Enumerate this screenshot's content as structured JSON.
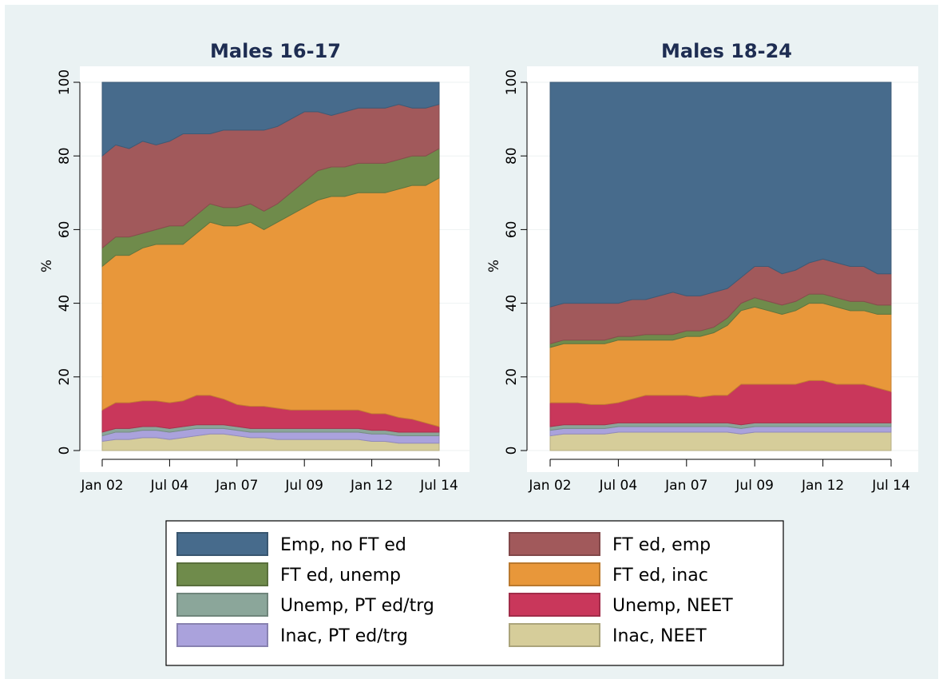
{
  "chart_data": [
    {
      "type": "area",
      "title": "Males 16-17",
      "y_label": "%",
      "x": [
        "Jan 02",
        null,
        null,
        null,
        null,
        "Jul 04",
        null,
        null,
        null,
        null,
        "Jan 07",
        null,
        null,
        null,
        null,
        "Jul 09",
        null,
        null,
        null,
        null,
        "Jan 12",
        null,
        null,
        null,
        null,
        "Jul 14"
      ],
      "ylim": [
        0,
        100
      ],
      "yticks": [
        0,
        20,
        40,
        60,
        80,
        100
      ],
      "grid": true,
      "stacked": true,
      "series": [
        {
          "name": "Inac, NEET",
          "color": "#d6cd9a",
          "values": [
            2.5,
            3,
            3,
            3.5,
            3.5,
            3,
            3.5,
            4,
            4.5,
            4.5,
            4,
            3.5,
            3.5,
            3,
            3,
            3,
            3,
            3,
            3,
            3,
            2.5,
            2.5,
            2,
            2,
            2,
            2
          ]
        },
        {
          "name": "Inac, PT ed/trg",
          "color": "#aaa2dc",
          "values": [
            1.5,
            2,
            2,
            2,
            2,
            2,
            2,
            2,
            1.5,
            1.5,
            1.5,
            1.5,
            1.5,
            2,
            2,
            2,
            2,
            2,
            2,
            2,
            2,
            2,
            2,
            2,
            2,
            2
          ]
        },
        {
          "name": "Unemp, PT ed/trg",
          "color": "#8ba69a",
          "values": [
            1,
            1,
            1,
            1,
            1,
            1,
            1,
            1,
            1,
            1,
            1,
            1,
            1,
            1,
            1,
            1,
            1,
            1,
            1,
            1,
            1,
            1,
            1,
            1,
            1,
            1
          ]
        },
        {
          "name": "Unemp, NEET",
          "color": "#c9375b",
          "values": [
            6,
            7,
            7,
            7,
            7,
            7,
            7,
            8,
            8,
            7,
            6,
            6,
            6,
            5.5,
            5,
            5,
            5,
            5,
            5,
            5,
            4.5,
            4.5,
            4,
            3.5,
            2.5,
            1.5
          ]
        },
        {
          "name": "FT ed, inac",
          "color": "#e8973a",
          "values": [
            39,
            40,
            40,
            41.5,
            42.5,
            43,
            42.5,
            44,
            47,
            47,
            48.5,
            50,
            48,
            50.5,
            53,
            55,
            57,
            58,
            58,
            59,
            60,
            60,
            62,
            63.5,
            64.5,
            67.5
          ]
        },
        {
          "name": "FT ed, unemp",
          "color": "#6f8b4b",
          "values": [
            5,
            5,
            5,
            4,
            4,
            5,
            5,
            5,
            5,
            5,
            5,
            5,
            5,
            5,
            6,
            7,
            8,
            8,
            8,
            8,
            8,
            8,
            8,
            8,
            8,
            8
          ]
        },
        {
          "name": "FT ed, emp",
          "color": "#a1595b",
          "values": [
            25,
            25,
            24,
            25,
            23,
            23,
            25,
            22,
            19,
            21,
            21,
            20,
            22,
            21,
            20,
            19,
            16,
            14,
            15,
            15,
            15,
            15,
            15,
            13,
            13,
            12
          ]
        },
        {
          "name": "Emp, no FT ed",
          "color": "#476b8c",
          "values": [
            20,
            17,
            18,
            16,
            17,
            16,
            14,
            14,
            14,
            13,
            13,
            13,
            13,
            12,
            10,
            8,
            8,
            9,
            8,
            7,
            7,
            7,
            6,
            7,
            7,
            6
          ]
        }
      ]
    },
    {
      "type": "area",
      "title": "Males 18-24",
      "y_label": "%",
      "x": [
        "Jan 02",
        null,
        null,
        null,
        null,
        "Jul 04",
        null,
        null,
        null,
        null,
        "Jan 07",
        null,
        null,
        null,
        null,
        "Jul 09",
        null,
        null,
        null,
        null,
        "Jan 12",
        null,
        null,
        null,
        null,
        "Jul 14"
      ],
      "ylim": [
        0,
        100
      ],
      "yticks": [
        0,
        20,
        40,
        60,
        80,
        100
      ],
      "grid": true,
      "stacked": true,
      "series": [
        {
          "color": "#d6cd9a",
          "values": [
            4,
            4.5,
            4.5,
            4.5,
            4.5,
            5,
            5,
            5,
            5,
            5,
            5,
            5,
            5,
            5,
            4.5,
            5,
            5,
            5,
            5,
            5,
            5,
            5,
            5,
            5,
            5,
            5
          ]
        },
        {
          "color": "#aaa2dc",
          "values": [
            1.5,
            1.5,
            1.5,
            1.5,
            1.5,
            1.5,
            1.5,
            1.5,
            1.5,
            1.5,
            1.5,
            1.5,
            1.5,
            1.5,
            1.5,
            1.5,
            1.5,
            1.5,
            1.5,
            1.5,
            1.5,
            1.5,
            1.5,
            1.5,
            1.5,
            1.5
          ]
        },
        {
          "color": "#8ba69a",
          "values": [
            1,
            1,
            1,
            1,
            1,
            1,
            1,
            1,
            1,
            1,
            1,
            1,
            1,
            1,
            1,
            1,
            1,
            1,
            1,
            1,
            1,
            1,
            1,
            1,
            1,
            1
          ]
        },
        {
          "color": "#c9375b",
          "values": [
            6.5,
            6,
            6,
            5.5,
            5.5,
            5.5,
            6.5,
            7.5,
            7.5,
            7.5,
            7.5,
            7,
            7.5,
            7.5,
            11,
            10.5,
            10.5,
            10.5,
            10.5,
            11.5,
            11.5,
            10.5,
            10.5,
            10.5,
            9.5,
            8.5
          ]
        },
        {
          "color": "#e8973a",
          "values": [
            15,
            16,
            16,
            16.5,
            16.5,
            17,
            16,
            15,
            15,
            15,
            16,
            16.5,
            17,
            19,
            20,
            21,
            20,
            19,
            20,
            21,
            21,
            21,
            20,
            20,
            20,
            21
          ]
        },
        {
          "color": "#6f8b4b",
          "values": [
            1,
            1,
            1,
            1,
            1,
            1,
            1,
            1.5,
            1.5,
            1.5,
            1.5,
            1.5,
            1.5,
            2,
            2,
            2.5,
            2.5,
            2.5,
            2.5,
            2.5,
            2.5,
            2.5,
            2.5,
            2.5,
            2.5,
            2.5
          ]
        },
        {
          "color": "#a1595b",
          "values": [
            10,
            10,
            10,
            10,
            10,
            9,
            10,
            9.5,
            10.5,
            11.5,
            9.5,
            9.5,
            9.5,
            8,
            7,
            8.5,
            9.5,
            8.5,
            8.5,
            8.5,
            9.5,
            9.5,
            9.5,
            9.5,
            8.5,
            8.5
          ]
        },
        {
          "color": "#476b8c",
          "values": [
            61,
            60,
            60,
            60,
            60,
            60,
            59,
            59,
            58,
            57,
            58,
            58,
            57,
            56,
            53,
            50,
            50,
            52,
            51,
            49,
            48,
            49,
            50,
            50,
            52,
            52
          ]
        }
      ]
    }
  ]
}
